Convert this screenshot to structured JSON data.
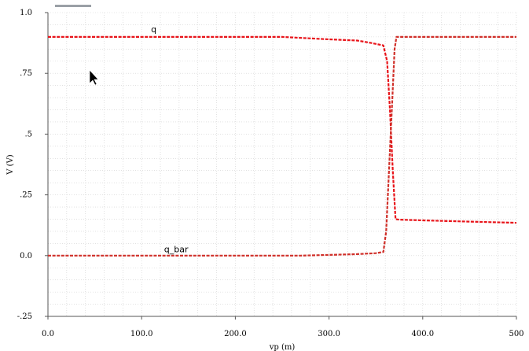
{
  "chart_data": {
    "type": "line",
    "title": "",
    "xlabel": "vp (m)",
    "ylabel": "V (V)",
    "xlim": [
      0,
      500
    ],
    "ylim": [
      -0.25,
      1.0
    ],
    "x_ticks": [
      0,
      100,
      200,
      300,
      400,
      500
    ],
    "x_tick_labels": [
      "0.0",
      "100.0",
      "200.0",
      "300.0",
      "400.0",
      "500"
    ],
    "y_ticks": [
      1.0,
      0.75,
      0.5,
      0.25,
      0.0,
      -0.25
    ],
    "y_tick_labels": [
      "1.0",
      ".75",
      ".5",
      ".25",
      "0.0",
      "-.25"
    ],
    "grid": true,
    "series": [
      {
        "name": "q",
        "color": "#e8141a",
        "label_at": [
          110,
          0.91
        ],
        "points": [
          [
            0,
            0.9
          ],
          [
            100,
            0.9
          ],
          [
            200,
            0.9
          ],
          [
            250,
            0.9
          ],
          [
            300,
            0.89
          ],
          [
            330,
            0.885
          ],
          [
            345,
            0.875
          ],
          [
            358,
            0.865
          ],
          [
            362,
            0.8
          ],
          [
            365,
            0.6
          ],
          [
            368,
            0.35
          ],
          [
            371,
            0.15
          ],
          [
            375,
            0.148
          ],
          [
            400,
            0.145
          ],
          [
            450,
            0.14
          ],
          [
            500,
            0.135
          ]
        ]
      },
      {
        "name": "q_bar",
        "color": "#d0302a",
        "label_at": [
          124,
          0.005
        ],
        "points": [
          [
            0,
            0.0
          ],
          [
            100,
            0.0
          ],
          [
            200,
            0.0
          ],
          [
            270,
            0.0
          ],
          [
            300,
            0.003
          ],
          [
            330,
            0.006
          ],
          [
            350,
            0.01
          ],
          [
            358,
            0.015
          ],
          [
            361,
            0.1
          ],
          [
            364,
            0.35
          ],
          [
            367,
            0.6
          ],
          [
            370,
            0.85
          ],
          [
            372,
            0.9
          ],
          [
            400,
            0.9
          ],
          [
            450,
            0.9
          ],
          [
            500,
            0.9
          ]
        ]
      }
    ]
  }
}
